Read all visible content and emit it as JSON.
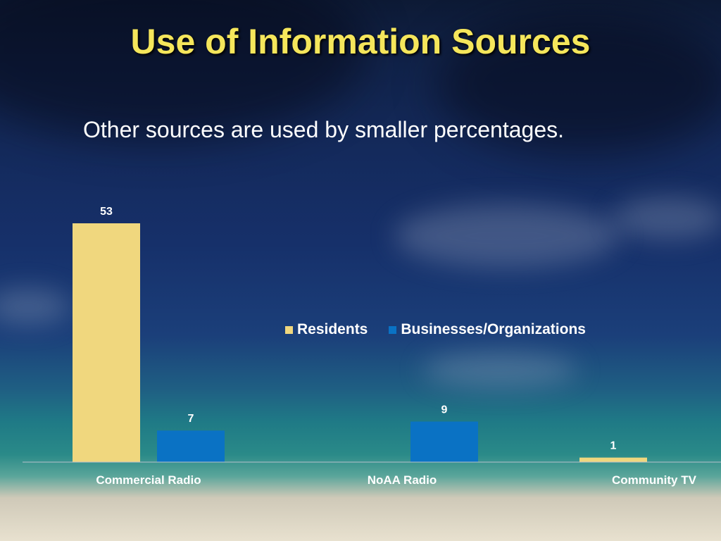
{
  "title": "Use of Information Sources",
  "subtitle": "Other sources are used by smaller percentages.",
  "colors": {
    "title": "#f5e65b",
    "residents": "#f0d77e",
    "businesses": "#0a72c4"
  },
  "chart_data": {
    "type": "bar",
    "categories": [
      "Commercial Radio",
      "NoAA Radio",
      "Community TV"
    ],
    "series": [
      {
        "name": "Residents",
        "values": [
          53,
          null,
          1
        ],
        "labels": [
          "53",
          "",
          "1"
        ]
      },
      {
        "name": "Businesses/Organizations",
        "values": [
          7,
          9,
          null
        ],
        "labels": [
          "7",
          "9",
          ""
        ]
      }
    ],
    "ylim": [
      0,
      53
    ],
    "grid": false,
    "legend": "center-right"
  }
}
